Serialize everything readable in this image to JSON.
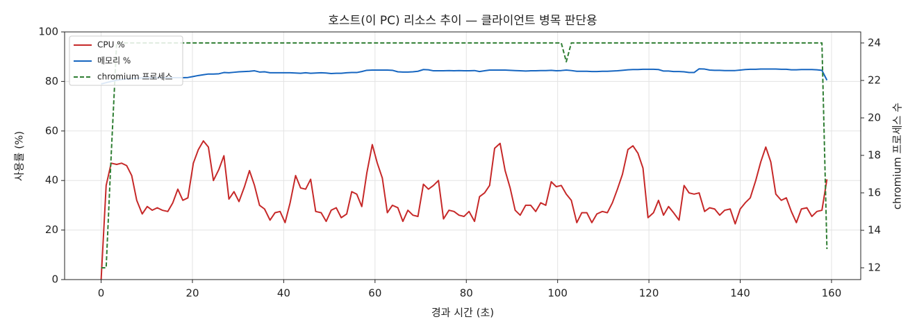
{
  "chart_data": {
    "type": "line",
    "title": "호스트(이 PC) 리소스 추이 — 클라이언트 병목 판단용",
    "xlabel": "경과 시간 (초)",
    "ylabel": "사용률 (%)",
    "y2label": "chromium 프로세스 수",
    "x": [
      0,
      1.1,
      2.2,
      3.4,
      4.5,
      5.6,
      6.7,
      7.8,
      9,
      10.1,
      11.2,
      12.3,
      13.4,
      14.6,
      15.7,
      16.8,
      17.9,
      19,
      20.2,
      21.3,
      22.4,
      23.5,
      24.6,
      25.8,
      26.9,
      28,
      29.1,
      30.2,
      31.4,
      32.5,
      33.6,
      34.7,
      35.8,
      37,
      38.1,
      39.2,
      40.3,
      41.4,
      42.6,
      43.7,
      44.8,
      45.9,
      47,
      48.2,
      49.3,
      50.4,
      51.5,
      52.6,
      53.8,
      54.9,
      56,
      57.1,
      58.2,
      59.4,
      60.5,
      61.6,
      62.7,
      63.8,
      65,
      66.1,
      67.2,
      68.3,
      69.4,
      70.6,
      71.7,
      72.8,
      73.9,
      75,
      76.2,
      77.3,
      78.4,
      79.5,
      80.6,
      81.8,
      82.9,
      84,
      85.1,
      86.2,
      87.4,
      88.5,
      89.6,
      90.7,
      91.8,
      93,
      94.1,
      95.2,
      96.3,
      97.4,
      98.6,
      99.7,
      100.8,
      101.9,
      103,
      104.2,
      105.3,
      106.4,
      107.5,
      108.6,
      109.8,
      110.9,
      112,
      113.1,
      114.2,
      115.4,
      116.5,
      117.6,
      118.7,
      119.8,
      121,
      122.1,
      123.2,
      124.3,
      125.4,
      126.6,
      127.7,
      128.8,
      129.9,
      131,
      132.2,
      133.3,
      134.4,
      135.5,
      136.6,
      137.8,
      138.9,
      140,
      141.1,
      142.2,
      143.4,
      144.5,
      145.6,
      146.7,
      147.8,
      149,
      150.1,
      151.2,
      152.3,
      153.4,
      154.6,
      155.7,
      156.8,
      157.9,
      159
    ],
    "series": [
      {
        "name": "CPU %",
        "color": "#c62828",
        "linestyle": "solid",
        "values": [
          0,
          38,
          47,
          46.5,
          47,
          46,
          42,
          32,
          26.5,
          29.5,
          28,
          29,
          28,
          27.5,
          31,
          36.5,
          32,
          33,
          47,
          52.5,
          56,
          53.5,
          40,
          44.5,
          50,
          32.5,
          35.5,
          31.5,
          37.5,
          44,
          38,
          30,
          28.5,
          24,
          27,
          27.5,
          23,
          31,
          42,
          37,
          36.5,
          40.5,
          27.5,
          27,
          23.5,
          28,
          29,
          25,
          26.5,
          35.5,
          34.5,
          29.5,
          43,
          54.5,
          47,
          41,
          27,
          30,
          29,
          23.5,
          28,
          26,
          25.5,
          38.5,
          36.5,
          38,
          40,
          24.5,
          28,
          27.5,
          26,
          25.5,
          27.5,
          23.5,
          33.5,
          35,
          38,
          53,
          55,
          44,
          37,
          28,
          26,
          30,
          30,
          27.5,
          31,
          30,
          39.5,
          37.5,
          38,
          34.5,
          32,
          23,
          27,
          27,
          23,
          26.5,
          27.5,
          27,
          31,
          36.5,
          42.5,
          52.5,
          54,
          51,
          45,
          25,
          27,
          32,
          26,
          29.5,
          27,
          24,
          38,
          35,
          34.5,
          35,
          27.5,
          29,
          28.5,
          26,
          28,
          28.5,
          22.5,
          28.5,
          31,
          33,
          40,
          47.5,
          53.5,
          47.5,
          34.5,
          32,
          33,
          27.5,
          23,
          28.5,
          29,
          25.5,
          27.5,
          28,
          40.5
        ]
      },
      {
        "name": "메모리 %",
        "color": "#1565c0",
        "linestyle": "solid",
        "values": [
          79,
          79.5,
          80,
          80.5,
          80.8,
          81,
          81.2,
          81.3,
          81.4,
          81.5,
          81.5,
          81.5,
          81.5,
          81.5,
          81.5,
          81.5,
          81.5,
          81.6,
          82,
          82.4,
          82.7,
          83,
          83,
          83.1,
          83.6,
          83.5,
          83.7,
          83.9,
          84,
          84.1,
          84.3,
          83.8,
          83.9,
          83.5,
          83.5,
          83.5,
          83.5,
          83.5,
          83.4,
          83.3,
          83.5,
          83.3,
          83.4,
          83.5,
          83.4,
          83.2,
          83.3,
          83.3,
          83.5,
          83.6,
          83.6,
          84,
          84.5,
          84.6,
          84.6,
          84.6,
          84.6,
          84.5,
          83.9,
          83.8,
          83.8,
          83.9,
          84.1,
          84.8,
          84.7,
          84.3,
          84.3,
          84.3,
          84.4,
          84.3,
          84.4,
          84.3,
          84.3,
          84.4,
          84,
          84.3,
          84.6,
          84.6,
          84.6,
          84.6,
          84.5,
          84.4,
          84.3,
          84.2,
          84.3,
          84.3,
          84.4,
          84.4,
          84.5,
          84.3,
          84.4,
          84.6,
          84.4,
          84.1,
          84.1,
          84.1,
          84,
          84,
          84.1,
          84.1,
          84.2,
          84.3,
          84.5,
          84.7,
          84.8,
          84.8,
          84.9,
          84.9,
          84.9,
          84.8,
          84.2,
          84.2,
          84,
          84,
          83.9,
          83.6,
          83.6,
          85.1,
          85,
          84.6,
          84.5,
          84.5,
          84.4,
          84.4,
          84.4,
          84.6,
          84.8,
          84.9,
          84.9,
          85,
          85,
          85,
          85,
          84.9,
          84.9,
          84.7,
          84.7,
          84.8,
          84.8,
          84.8,
          84.7,
          84.5,
          80.5
        ]
      },
      {
        "name": "chromium 프로세스",
        "color": "#2e7d32",
        "linestyle": "dashed",
        "axis": "y2",
        "values": [
          12,
          12,
          18,
          24,
          24,
          24,
          24,
          24,
          24,
          24,
          24,
          24,
          24,
          24,
          24,
          24,
          24,
          24,
          24,
          24,
          24,
          24,
          24,
          24,
          24,
          24,
          24,
          24,
          24,
          24,
          24,
          24,
          24,
          24,
          24,
          24,
          24,
          24,
          24,
          24,
          24,
          24,
          24,
          24,
          24,
          24,
          24,
          24,
          24,
          24,
          24,
          24,
          24,
          24,
          24,
          24,
          24,
          24,
          24,
          24,
          24,
          24,
          24,
          24,
          24,
          24,
          24,
          24,
          24,
          24,
          24,
          24,
          24,
          24,
          24,
          24,
          24,
          24,
          24,
          24,
          24,
          24,
          24,
          24,
          24,
          24,
          24,
          24,
          24,
          24,
          24,
          23,
          24,
          24,
          24,
          24,
          24,
          24,
          24,
          24,
          24,
          24,
          24,
          24,
          24,
          24,
          24,
          24,
          24,
          24,
          24,
          24,
          24,
          24,
          24,
          24,
          24,
          24,
          24,
          24,
          24,
          24,
          24,
          24,
          24,
          24,
          24,
          24,
          24,
          24,
          24,
          24,
          24,
          24,
          24,
          24,
          24,
          24,
          24,
          24,
          24,
          24,
          13
        ]
      }
    ],
    "xlim": [
      -8,
      166.4
    ],
    "xticks": [
      0,
      20,
      40,
      60,
      80,
      100,
      120,
      140,
      160
    ],
    "ylim": [
      0,
      100
    ],
    "yticks": [
      0,
      20,
      40,
      60,
      80,
      100
    ],
    "y2lim": [
      11.37,
      24.59
    ],
    "y2ticks": [
      12,
      14,
      16,
      18,
      20,
      22,
      24
    ],
    "grid": true,
    "legend": "upper left"
  }
}
